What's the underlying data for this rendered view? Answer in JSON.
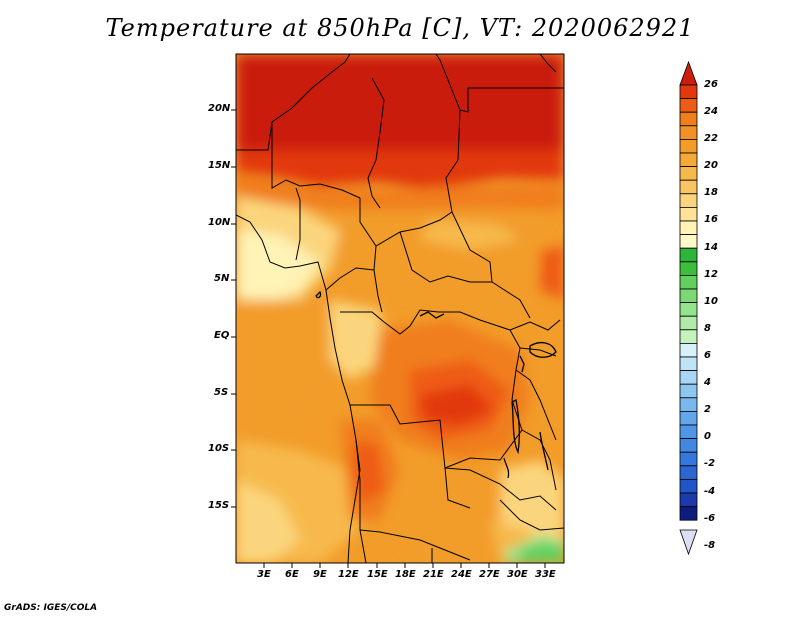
{
  "title": "Temperature at 850hPa [C], VT: 2020062921",
  "credit": "GrADS: IGES/COLA",
  "map": {
    "region": "Central Africa",
    "projection": "lat-lon",
    "variable": "Temperature at 850hPa",
    "units": "C",
    "lat_ticks": [
      "20N",
      "15N",
      "10N",
      "5N",
      "EQ",
      "5S",
      "10S",
      "15S"
    ],
    "lon_ticks": [
      "3E",
      "6E",
      "9E",
      "12E",
      "15E",
      "18E",
      "21E",
      "24E",
      "27E",
      "30E",
      "33E"
    ]
  },
  "colorbar": {
    "labels": [
      "26",
      "24",
      "22",
      "20",
      "18",
      "16",
      "14",
      "12",
      "10",
      "8",
      "6",
      "4",
      "2",
      "0",
      "-2",
      "-4",
      "-6",
      "-8"
    ],
    "colors": [
      "#ca1f0c",
      "#e2380e",
      "#ee5b14",
      "#f07e1b",
      "#f29c2a",
      "#f7b94b",
      "#fbd57d",
      "#fff3b5",
      "#3cbd3c",
      "#62d05e",
      "#95e38e",
      "#c4f1bc",
      "#d8f0f9",
      "#a9d6f5",
      "#7ab7ef",
      "#4f97e6",
      "#3577dc",
      "#2256c8",
      "#1a3ba9",
      "#0d1d7e",
      "#ddddf6"
    ]
  }
}
